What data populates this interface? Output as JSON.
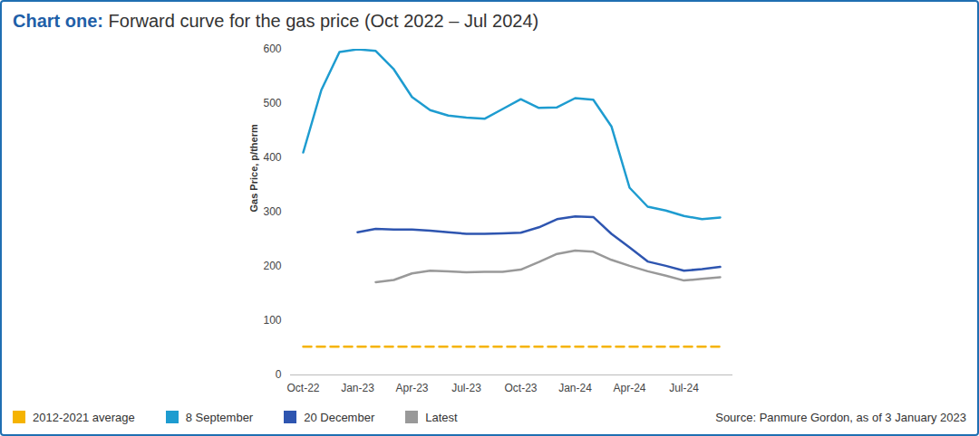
{
  "chart_data": {
    "type": "line",
    "title": "Chart one: Forward curve for the gas price (Oct 2022 – Jul 2024)",
    "y_label": "Gas Price, p/therm",
    "source": "Source: Panmure Gordon, as of 3 January 2023",
    "categories": [
      "Oct-22",
      null,
      null,
      "Jan-23",
      null,
      null,
      "Apr-23",
      null,
      null,
      "Jul-23",
      null,
      null,
      "Oct-23",
      null,
      null,
      "Jan-24",
      null,
      null,
      "Apr-24",
      null,
      null,
      "Jul-24",
      null,
      null
    ],
    "series": [
      {
        "name": "2012-2021 average",
        "color": "#f5b301",
        "line_style": "dashed",
        "values": [
          52,
          52,
          52,
          52,
          52,
          52,
          52,
          52,
          52,
          52,
          52,
          52,
          52,
          52,
          52,
          52,
          52,
          52,
          52,
          52,
          52,
          52,
          52,
          52
        ]
      },
      {
        "name": "8 September",
        "color": "#1e9cd0",
        "line_style": "solid",
        "values": [
          410,
          525,
          595,
          600,
          597,
          563,
          512,
          488,
          478,
          474,
          472,
          490,
          508,
          492,
          493,
          510,
          507,
          458,
          345,
          310,
          303,
          293,
          287,
          290
        ]
      },
      {
        "name": "20 December",
        "color": "#2e55b0",
        "line_style": "solid",
        "values": [
          null,
          null,
          null,
          263,
          269,
          268,
          268,
          266,
          263,
          260,
          260,
          261,
          262,
          272,
          287,
          292,
          291,
          260,
          235,
          209,
          201,
          192,
          195,
          199
        ]
      },
      {
        "name": "Latest",
        "color": "#999999",
        "line_style": "solid",
        "values": [
          null,
          null,
          null,
          null,
          171,
          175,
          187,
          192,
          191,
          189,
          190,
          190,
          194,
          208,
          223,
          229,
          227,
          212,
          201,
          191,
          183,
          174,
          177,
          180
        ]
      }
    ],
    "ylim": [
      0,
      600
    ],
    "yticks": [
      0,
      100,
      200,
      300,
      400,
      500,
      600
    ],
    "grid": false,
    "legend": "bottom"
  }
}
